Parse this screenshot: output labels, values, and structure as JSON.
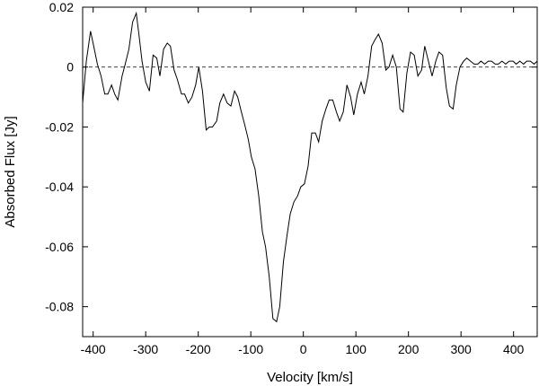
{
  "chart_data": {
    "type": "line",
    "xlabel": "Velocity [km/s]",
    "ylabel": "Absorbed Flux [Jy]",
    "xlim": [
      -420,
      445
    ],
    "ylim": [
      -0.09,
      0.02
    ],
    "x_ticks": [
      -400,
      -300,
      -200,
      -100,
      0,
      100,
      200,
      300,
      400
    ],
    "x_tick_labels": [
      "-400",
      "-300",
      "-200",
      "-100",
      "0",
      "100",
      "200",
      "300",
      "400"
    ],
    "y_ticks": [
      0.02,
      0,
      -0.02,
      -0.04,
      -0.06,
      -0.08
    ],
    "y_tick_labels": [
      "0.02",
      "0",
      "-0.02",
      "-0.04",
      "-0.06",
      "-0.08"
    ],
    "grid": false,
    "reference_line": {
      "y": 0,
      "style": "dashed"
    },
    "series": [
      {
        "x": [
          -420,
          -413,
          -405,
          -399,
          -392,
          -385,
          -378,
          -372,
          -365,
          -359,
          -353,
          -345,
          -339,
          -332,
          -325,
          -318,
          -313,
          -307,
          -300,
          -293,
          -286,
          -279,
          -273,
          -266,
          -259,
          -253,
          -246,
          -240,
          -232,
          -226,
          -219,
          -212,
          -205,
          -199,
          -192,
          -185,
          -179,
          -173,
          -165,
          -159,
          -152,
          -145,
          -138,
          -131,
          -125,
          -118,
          -112,
          -105,
          -99,
          -92,
          -85,
          -78,
          -72,
          -65,
          -58,
          -51,
          -45,
          -38,
          -31,
          -25,
          -18,
          -11,
          -5,
          2,
          9,
          16,
          23,
          29,
          36,
          43,
          49,
          56,
          63,
          69,
          76,
          83,
          90,
          96,
          103,
          110,
          116,
          123,
          130,
          136,
          143,
          150,
          157,
          163,
          170,
          177,
          184,
          190,
          197,
          204,
          211,
          218,
          225,
          231,
          238,
          245,
          252,
          258,
          265,
          272,
          278,
          285,
          291,
          298,
          305,
          311,
          318,
          325,
          332,
          338,
          345,
          352,
          358,
          365,
          371,
          378,
          385,
          392,
          399,
          405,
          412,
          419,
          425,
          432,
          439,
          445
        ],
        "values": [
          -0.012,
          0.002,
          0.012,
          0.007,
          0.001,
          -0.003,
          -0.009,
          -0.009,
          -0.006,
          -0.009,
          -0.011,
          -0.003,
          0.001,
          0.006,
          0.015,
          0.018,
          0.011,
          0.002,
          -0.005,
          -0.008,
          0.004,
          0.003,
          -0.003,
          0.006,
          0.008,
          0.007,
          -0.001,
          -0.004,
          -0.009,
          -0.009,
          -0.012,
          -0.01,
          -0.006,
          0.0,
          -0.008,
          -0.021,
          -0.02,
          -0.02,
          -0.018,
          -0.012,
          -0.009,
          -0.012,
          -0.013,
          -0.008,
          -0.01,
          -0.015,
          -0.019,
          -0.024,
          -0.03,
          -0.034,
          -0.043,
          -0.055,
          -0.06,
          -0.07,
          -0.084,
          -0.085,
          -0.08,
          -0.065,
          -0.056,
          -0.049,
          -0.045,
          -0.043,
          -0.04,
          -0.039,
          -0.033,
          -0.022,
          -0.022,
          -0.025,
          -0.018,
          -0.014,
          -0.011,
          -0.011,
          -0.015,
          -0.018,
          -0.015,
          -0.006,
          -0.01,
          -0.016,
          -0.009,
          -0.005,
          -0.009,
          -0.003,
          0.007,
          0.009,
          0.011,
          0.008,
          -0.001,
          0.0,
          0.004,
          0.0,
          -0.014,
          -0.015,
          -0.002,
          0.005,
          0.004,
          -0.003,
          -0.001,
          0.007,
          0.002,
          -0.003,
          0.002,
          0.005,
          0.004,
          -0.007,
          -0.013,
          -0.014,
          -0.006,
          0.0,
          0.002,
          0.003,
          0.002,
          0.001,
          0.001,
          0.002,
          0.001,
          0.002,
          0.002,
          0.001,
          0.001,
          0.002,
          0.001,
          0.002,
          0.002,
          0.001,
          0.002,
          0.001,
          0.002,
          0.002,
          0.001,
          0.002
        ]
      }
    ]
  }
}
